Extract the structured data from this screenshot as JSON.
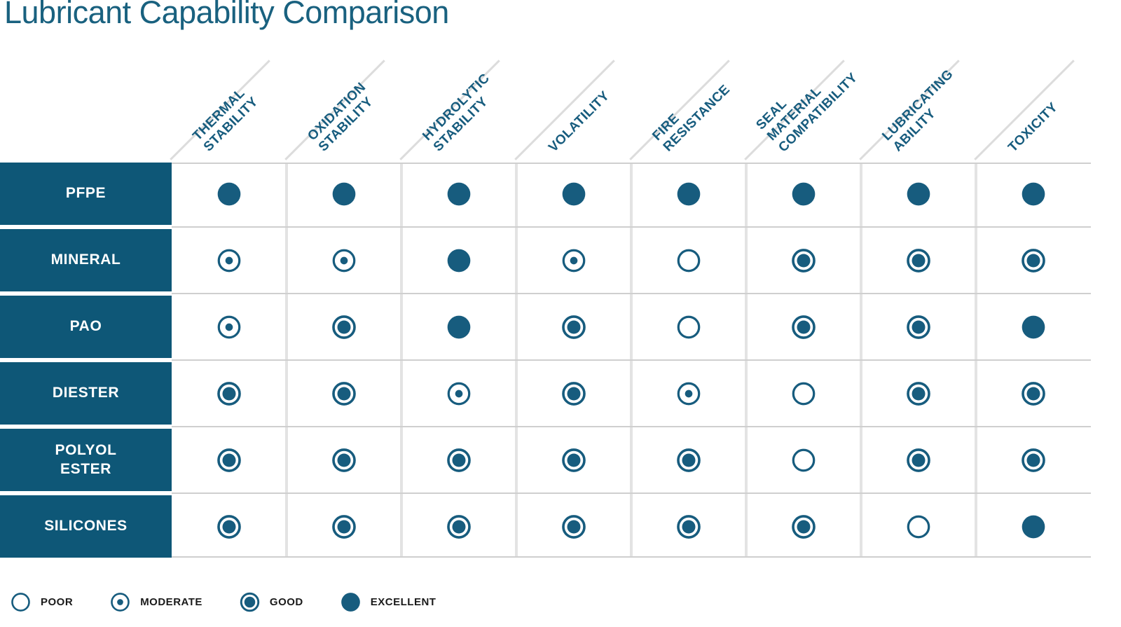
{
  "chart_data": {
    "type": "table",
    "title": "Lubricant Capability Comparison",
    "columns": [
      "THERMAL\nSTABILITY",
      "OXIDATION\nSTABILITY",
      "HYDROLYTIC\nSTABILITY",
      "VOLATILITY",
      "FIRE\nRESISTANCE",
      "SEAL MATERIAL\nCOMPATIBILITY",
      "LUBRICATING\nABILITY",
      "TOXICITY"
    ],
    "rows": [
      {
        "label": "PFPE",
        "values": [
          "excellent",
          "excellent",
          "excellent",
          "excellent",
          "excellent",
          "excellent",
          "excellent",
          "excellent"
        ]
      },
      {
        "label": "MINERAL",
        "values": [
          "moderate",
          "moderate",
          "excellent",
          "moderate",
          "poor",
          "good",
          "good",
          "good"
        ]
      },
      {
        "label": "PAO",
        "values": [
          "moderate",
          "good",
          "excellent",
          "good",
          "poor",
          "good",
          "good",
          "excellent"
        ]
      },
      {
        "label": "DIESTER",
        "values": [
          "good",
          "good",
          "moderate",
          "good",
          "moderate",
          "poor",
          "good",
          "good"
        ]
      },
      {
        "label": "POLYOL\nESTER",
        "values": [
          "good",
          "good",
          "good",
          "good",
          "good",
          "poor",
          "good",
          "good"
        ]
      },
      {
        "label": "SILICONES",
        "values": [
          "good",
          "good",
          "good",
          "good",
          "good",
          "good",
          "poor",
          "excellent"
        ]
      }
    ],
    "scale": [
      "poor",
      "moderate",
      "good",
      "excellent"
    ],
    "legend": [
      {
        "value": "poor",
        "label": "POOR"
      },
      {
        "value": "moderate",
        "label": "MODERATE"
      },
      {
        "value": "good",
        "label": "GOOD"
      },
      {
        "value": "excellent",
        "label": "EXCELLENT"
      }
    ],
    "legend_position": "bottom"
  },
  "colors": {
    "accent": "#175c7e",
    "title_text": "#19617f",
    "row_label_bg": "#0e5777",
    "header_text": "#175c7e",
    "grid_line": "#dcdcdc",
    "legend_text": "#1a1a1a"
  }
}
